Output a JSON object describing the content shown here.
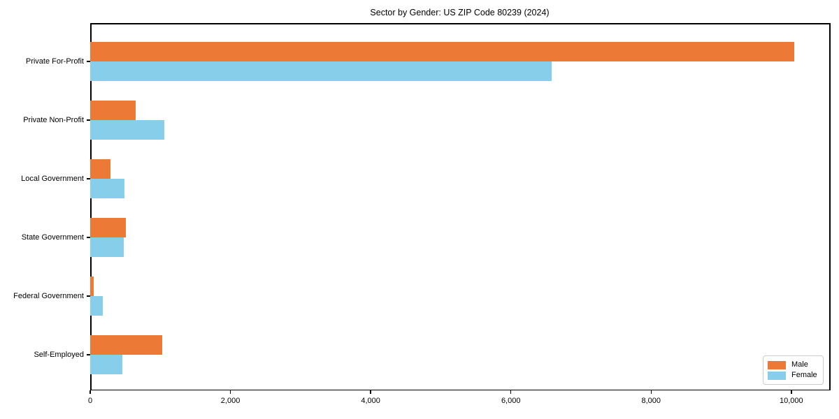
{
  "chart_data": {
    "type": "bar",
    "orientation": "horizontal",
    "title": "Sector by Gender: US ZIP Code 80239 (2024)",
    "categories": [
      "Private For-Profit",
      "Private Non-Profit",
      "Local Government",
      "State Government",
      "Federal Government",
      "Self-Employed"
    ],
    "series": [
      {
        "name": "Male",
        "color": "#ec7a36",
        "values": [
          10040,
          650,
          290,
          510,
          50,
          1030
        ]
      },
      {
        "name": "Female",
        "color": "#87ceeb",
        "values": [
          6580,
          1060,
          490,
          480,
          180,
          460
        ]
      }
    ],
    "xlabel": "",
    "ylabel": "",
    "xlim": [
      0,
      10540
    ],
    "xticks": [
      0,
      2000,
      4000,
      6000,
      8000,
      10000
    ],
    "grid": false,
    "legend_position": "lower right",
    "background_color": "#ffffff",
    "spine_color": "#000000"
  }
}
